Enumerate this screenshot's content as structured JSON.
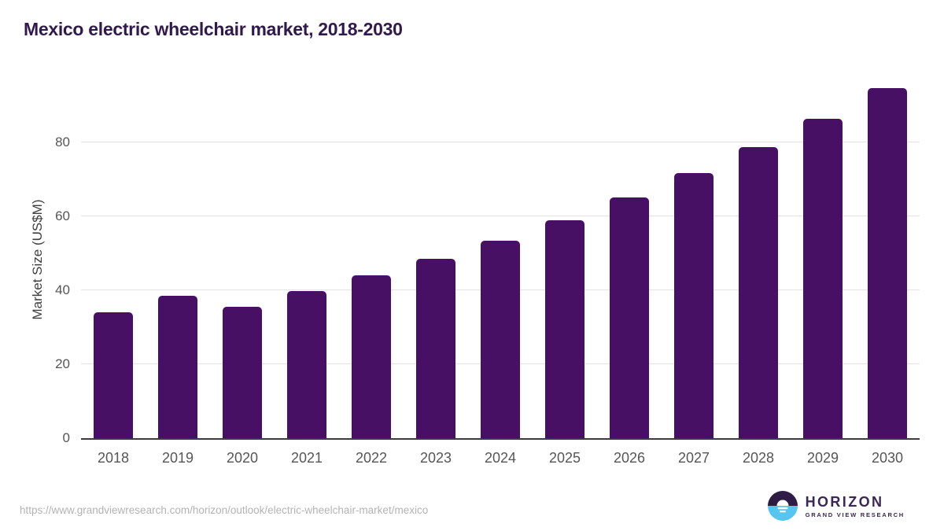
{
  "header": {
    "title": "Mexico electric wheelchair market, 2018-2030"
  },
  "chart_data": {
    "type": "bar",
    "title": "Mexico electric wheelchair market, 2018-2030",
    "categories": [
      "2018",
      "2019",
      "2020",
      "2021",
      "2022",
      "2023",
      "2024",
      "2025",
      "2026",
      "2027",
      "2028",
      "2029",
      "2030"
    ],
    "values": [
      34.0,
      38.5,
      35.6,
      39.7,
      44.0,
      48.4,
      53.4,
      59.0,
      65.0,
      71.7,
      78.7,
      86.3,
      94.6
    ],
    "xlabel": "",
    "ylabel": "Market Size (US$M)",
    "yticks": [
      0,
      20,
      40,
      60,
      80
    ],
    "ylim": [
      0,
      97.2
    ],
    "grid": "horizontal-light",
    "legend": "none",
    "bar_color": "#471064"
  },
  "colors": {
    "title_text": "#32194d",
    "bar": "#471064",
    "tick_text": "#565656",
    "gridline": "#e2e2e2",
    "axis_line": "#3c3c3c",
    "url_text": "#b3b3b3",
    "logo_dark_purple": "#2e1c45",
    "logo_light_blue": "#56c6f0"
  },
  "footer": {
    "source_url": "https://www.grandviewresearch.com/horizon/outlook/electric-wheelchair-market/mexico",
    "logo_name": "HORIZON",
    "logo_subtitle": "GRAND VIEW RESEARCH"
  }
}
